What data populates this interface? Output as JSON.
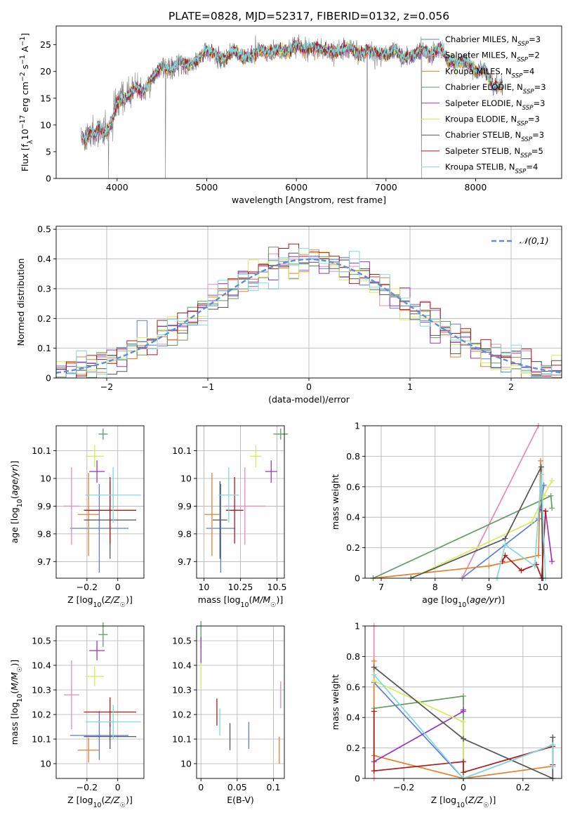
{
  "figure_title": "PLATE=0828, MJD=52317, FIBERID=0132, z=0.056",
  "series": [
    {
      "name": "Chabrier MILES",
      "nssp": "3",
      "color": "#5b7fd6",
      "age": 9.82,
      "age_err": 0.16,
      "Z": -0.12,
      "Z_err": 0.19,
      "mass": 10.115,
      "mass_err": 0.1,
      "mass_err_lo": 0.08,
      "ebv": 0.066,
      "ebv_err": 0.07
    },
    {
      "name": "Salpeter MILES",
      "nssp": "2",
      "color": "#e68ab8",
      "age": 9.9,
      "age_err": 0.14,
      "Z": -0.3,
      "Z_err": 0.05,
      "mass": 10.28,
      "mass_err": 0.14,
      "ebv": 0.11,
      "ebv_err": 0.08
    },
    {
      "name": "Kroupa MILES",
      "nssp": "4",
      "color": "#e87f2a",
      "age": 9.87,
      "age_err": 0.15,
      "Z": -0.19,
      "Z_err": 0.07,
      "mass": 10.055,
      "mass_err": 0.05,
      "ebv": 0.108,
      "ebv_err": 0.06
    },
    {
      "name": "Chabrier ELODIE",
      "nssp": "3",
      "color": "#5e9e63",
      "age": 10.16,
      "age_err": 0.02,
      "Z": -0.095,
      "Z_err": 0.03,
      "mass": 10.525,
      "mass_err": 0.05,
      "ebv": 0.0,
      "ebv_err": 0.02
    },
    {
      "name": "Salpeter ELODIE",
      "nssp": "3",
      "color": "#9b35c2",
      "age": 10.025,
      "age_err": 0.04,
      "Z": -0.135,
      "Z_err": 0.05,
      "mass": 10.46,
      "mass_err": 0.04,
      "ebv": 0.0,
      "ebv_err": 0.04
    },
    {
      "name": "Kroupa ELODIE",
      "nssp": "3",
      "color": "#d8ec5a",
      "age": 10.08,
      "age_err": 0.04,
      "Z": -0.15,
      "Z_err": 0.06,
      "mass": 10.355,
      "mass_err": 0.04,
      "ebv": 0.0,
      "ebv_err": 0.04
    },
    {
      "name": "Chabrier STELIB",
      "nssp": "3",
      "color": "#545454",
      "age": 9.85,
      "age_err": 0.14,
      "Z": -0.05,
      "Z_err": 0.17,
      "mass": 10.11,
      "mass_err": 0.05,
      "ebv": 0.04,
      "ebv_err": 0.06
    },
    {
      "name": "Salpeter STELIB",
      "nssp": "5",
      "color": "#b01818",
      "age": 9.885,
      "age_err": 0.12,
      "Z": -0.05,
      "Z_err": 0.17,
      "mass": 10.21,
      "mass_err": 0.06,
      "ebv": 0.022,
      "ebv_err": 0.06
    },
    {
      "name": "Kroupa STELIB",
      "nssp": "4",
      "color": "#82d9de",
      "age": 9.94,
      "age_err": 0.1,
      "Z": -0.03,
      "Z_err": 0.18,
      "mass": 10.17,
      "mass_err": 0.07,
      "ebv": 0.026,
      "ebv_err": 0.08
    }
  ],
  "chart_data": [
    {
      "id": "spectrum",
      "type": "line",
      "title": "PLATE=0828, MJD=52317, FIBERID=0132, z=0.056",
      "xlabel": "wavelength [Angstrom, rest frame]",
      "ylabel": "Flux [f_λ 10^-17 erg cm^-2 s^-1 A^-1]",
      "xlim": [
        3320,
        8960
      ],
      "ylim": [
        0,
        28.5
      ],
      "xticks": [
        4000,
        5000,
        6000,
        7000,
        8000
      ],
      "yticks": [
        0,
        5,
        10,
        15,
        20,
        25
      ],
      "grid": false,
      "legend_position": "right",
      "data_color": "#7f7f7f",
      "continuum": {
        "x": [
          3600,
          3650,
          3700,
          3750,
          3800,
          3850,
          3900,
          3950,
          4000,
          4100,
          4200,
          4300,
          4400,
          4500,
          4600,
          4700,
          4800,
          4900,
          5000,
          5100,
          5200,
          5300,
          5400,
          5500,
          5600,
          5700,
          5800,
          5900,
          6000,
          6100,
          6200,
          6300,
          6400,
          6500,
          6600,
          6700,
          6800,
          6900,
          7000,
          7100,
          7200,
          7300,
          7400,
          7500,
          7600,
          7700,
          7800,
          7900,
          8000,
          8100,
          8200,
          8300
        ],
        "y": [
          8,
          7,
          9,
          8,
          10,
          8,
          9,
          11,
          14,
          15,
          17,
          16,
          19,
          21,
          20,
          22,
          21,
          22,
          24,
          23,
          22,
          24,
          22.5,
          23,
          24,
          23.5,
          24,
          23.5,
          25,
          24,
          24.5,
          24,
          23.5,
          24,
          24.5,
          23,
          24,
          23.5,
          23,
          24,
          22.5,
          23,
          24,
          23,
          24.5,
          22,
          21.5,
          22,
          20,
          20.5,
          17,
          17.5
        ]
      },
      "spikes": [
        3905,
        4540,
        6790,
        7395
      ]
    },
    {
      "id": "residuals",
      "type": "bar",
      "xlabel": "(data-model)/error",
      "ylabel": "Normed distribution",
      "xlim": [
        -2.5,
        2.5
      ],
      "ylim": [
        0,
        0.51
      ],
      "xticks": [
        -2,
        -1,
        0,
        1,
        2
      ],
      "yticks": [
        0.0,
        0.1,
        0.2,
        0.3,
        0.4,
        0.5
      ],
      "grid": true,
      "bin_width": 0.1,
      "normal_label": "𝒩(0,1)",
      "normal_color": "#5b8fd6",
      "legend_position": "top-right"
    },
    {
      "id": "age-vs-Z",
      "type": "scatter",
      "xlabel": "Z [log10(Z/Z☉)]",
      "ylabel": "age [log10(age/yr)]",
      "xlim": [
        -0.4,
        0.17
      ],
      "ylim": [
        9.64,
        10.19
      ],
      "xticks": [
        -0.2,
        0.0
      ],
      "yticks": [
        9.7,
        9.8,
        9.9,
        10.0,
        10.1
      ],
      "xfield": "Z",
      "yfield": "age",
      "xerr": "Z_err",
      "yerr": "age_err",
      "grid": true
    },
    {
      "id": "age-vs-mass",
      "type": "scatter",
      "xlabel": "mass [log10(M/M☉)]",
      "ylabel": "",
      "xlim": [
        9.95,
        10.55
      ],
      "ylim": [
        9.64,
        10.19
      ],
      "xticks": [
        10.0,
        10.25,
        10.5
      ],
      "yticks": [
        9.7,
        9.8,
        9.9,
        10.0,
        10.1
      ],
      "xfield": "mass",
      "yfield": "age",
      "xerr": "mass_err",
      "yerr": "age_err",
      "grid": true
    },
    {
      "id": "weight-vs-age",
      "type": "line",
      "xlabel": "age [log10(age/yr)]",
      "ylabel": "mass weight",
      "xlim": [
        6.7,
        10.35
      ],
      "ylim": [
        0,
        1.0
      ],
      "xticks": [
        7,
        8,
        9,
        10
      ],
      "yticks": [
        0.0,
        0.2,
        0.4,
        0.6,
        0.8,
        1.0
      ],
      "grid": true,
      "series": [
        {
          "name": "Chabrier MILES",
          "x": [
            8.5,
            9.92,
            10.02
          ],
          "y": [
            0.0,
            0.39,
            0.61
          ]
        },
        {
          "name": "Salpeter MILES",
          "x": [
            8.5,
            9.92
          ],
          "y": [
            0.0,
            1.0
          ]
        },
        {
          "name": "Kroupa MILES",
          "x": [
            6.85,
            9.0,
            9.92,
            9.96
          ],
          "y": [
            0.0,
            0.08,
            0.15,
            0.77
          ]
        },
        {
          "name": "Chabrier ELODIE",
          "x": [
            6.85,
            10.15,
            10.17
          ],
          "y": [
            0.0,
            0.54,
            0.46
          ]
        },
        {
          "name": "Salpeter ELODIE",
          "x": [
            9.95,
            10.05,
            10.17
          ],
          "y": [
            0.45,
            0.44,
            0.11
          ]
        },
        {
          "name": "Kroupa ELODIE",
          "x": [
            7.55,
            9.8,
            10.02,
            10.17
          ],
          "y": [
            0.0,
            0.37,
            0.54,
            0.64
          ]
        },
        {
          "name": "Chabrier STELIB",
          "x": [
            7.55,
            9.3,
            9.97,
            10.0
          ],
          "y": [
            0.0,
            0.26,
            0.73,
            0.0
          ]
        },
        {
          "name": "Salpeter STELIB",
          "x": [
            9.25,
            9.3,
            9.6,
            9.88,
            9.98,
            10.05
          ],
          "y": [
            0.11,
            0.15,
            0.05,
            0.09,
            0.0,
            0.44
          ]
        },
        {
          "name": "Kroupa STELIB",
          "x": [
            9.15,
            9.3,
            9.85,
            9.97,
            10.05
          ],
          "y": [
            0.0,
            0.22,
            0.08,
            0.68,
            0.0
          ]
        }
      ]
    },
    {
      "id": "mass-vs-Z",
      "type": "scatter",
      "xlabel": "Z [log10(Z/Z☉)]",
      "ylabel": "mass [log10(M/M☉)]",
      "xlim": [
        -0.4,
        0.17
      ],
      "ylim": [
        9.94,
        10.56
      ],
      "xticks": [
        -0.2,
        0.0
      ],
      "yticks": [
        10.0,
        10.1,
        10.2,
        10.3,
        10.4,
        10.5
      ],
      "xfield": "Z",
      "yfield": "mass",
      "xerr": "Z_err",
      "yerr": "mass_err",
      "grid": true
    },
    {
      "id": "mass-vs-ebv",
      "type": "scatter",
      "xlabel": "E(B-V)",
      "ylabel": "",
      "xlim": [
        -0.006,
        0.115
      ],
      "ylim": [
        9.94,
        10.56
      ],
      "xticks": [
        0.0,
        0.05,
        0.1
      ],
      "yticks": [
        10.0,
        10.1,
        10.2,
        10.3,
        10.4,
        10.5
      ],
      "xfield": "ebv",
      "yfield": "mass",
      "yerr": "ebv_err",
      "grid": true
    },
    {
      "id": "weight-vs-Z",
      "type": "line",
      "xlabel": "Z [log10(Z/Z☉)]",
      "ylabel": "mass weight",
      "xlim": [
        -0.33,
        0.33
      ],
      "ylim": [
        0,
        1.0
      ],
      "xticks": [
        -0.2,
        0.0,
        0.2
      ],
      "yticks": [
        0.0,
        0.2,
        0.4,
        0.6,
        0.8,
        1.0
      ],
      "grid": true,
      "series": [
        {
          "name": "Chabrier MILES",
          "x": [
            -0.3,
            0.0,
            0.3
          ],
          "y": [
            0.63,
            0.0,
            0.22
          ]
        },
        {
          "name": "Salpeter MILES",
          "x": [
            -0.3,
            -0.3
          ],
          "y": [
            0.0,
            1.0
          ]
        },
        {
          "name": "Kroupa MILES",
          "x": [
            -0.3,
            -0.3,
            0.0,
            0.3
          ],
          "y": [
            0.77,
            0.15,
            0.0,
            0.08
          ]
        },
        {
          "name": "Chabrier ELODIE",
          "x": [
            -0.3,
            0.0,
            0.0
          ],
          "y": [
            0.46,
            0.54,
            0.0
          ]
        },
        {
          "name": "Salpeter ELODIE",
          "x": [
            -0.3,
            0.0,
            0.0
          ],
          "y": [
            0.11,
            0.44,
            0.45
          ]
        },
        {
          "name": "Kroupa ELODIE",
          "x": [
            -0.3,
            0.0,
            0.0
          ],
          "y": [
            0.64,
            0.37,
            0.0
          ]
        },
        {
          "name": "Chabrier STELIB",
          "x": [
            -0.3,
            0.0,
            0.3,
            0.3
          ],
          "y": [
            0.73,
            0.26,
            0.0,
            0.27
          ]
        },
        {
          "name": "Salpeter STELIB",
          "x": [
            -0.3,
            -0.3,
            0.0,
            0.0,
            0.3,
            0.3
          ],
          "y": [
            0.44,
            0.05,
            0.11,
            0.04,
            0.21,
            0.09
          ]
        },
        {
          "name": "Kroupa STELIB",
          "x": [
            -0.3,
            0.0,
            0.3,
            0.3
          ],
          "y": [
            0.68,
            0.0,
            0.22,
            0.08
          ]
        }
      ]
    }
  ]
}
